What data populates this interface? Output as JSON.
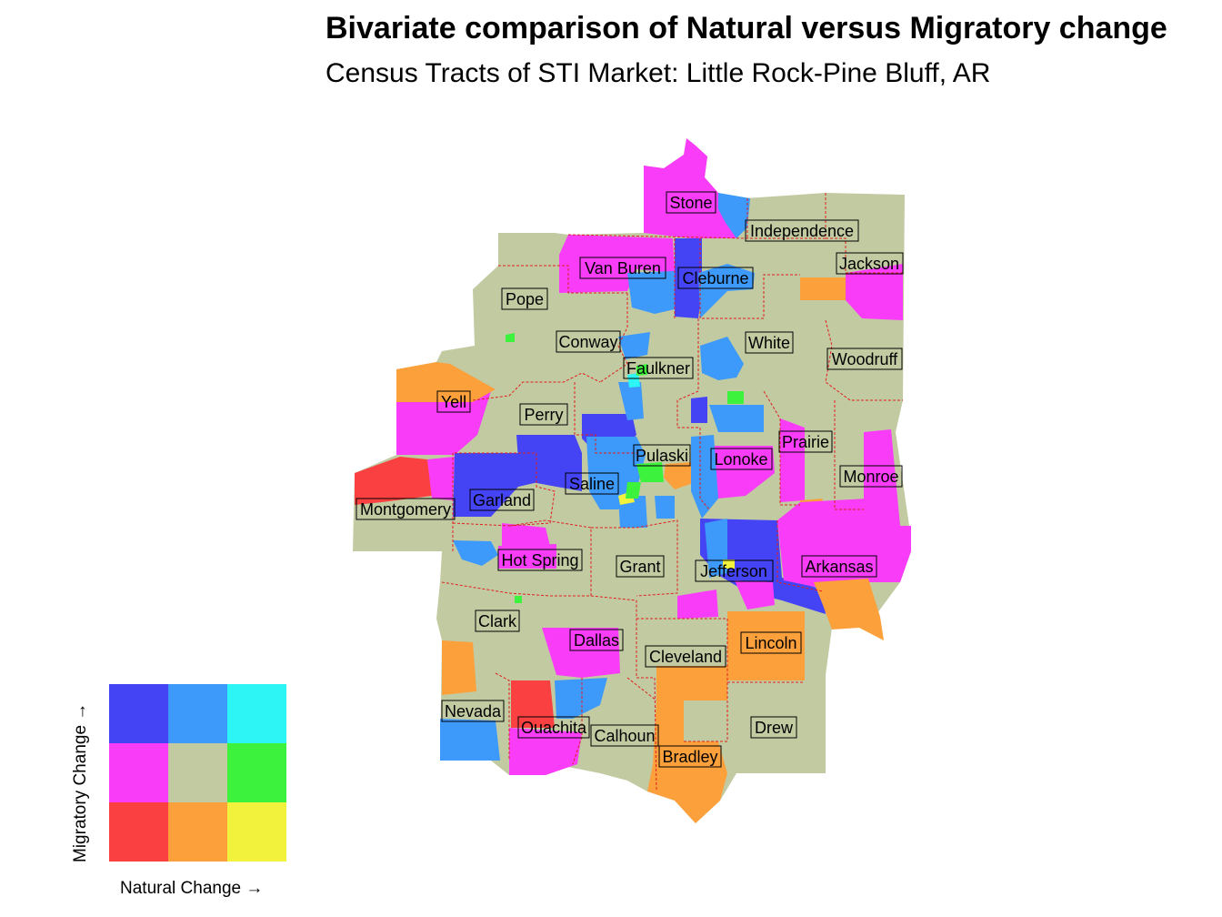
{
  "title": "Bivariate comparison of Natural versus Migratory change",
  "subtitle": "Census Tracts of STI Market: Little Rock-Pine Bluff, AR",
  "colors": {
    "high_mig_low_nat": "#4444f5",
    "high_mig_mid_nat": "#3d99fa",
    "high_mig_high_nat": "#2ef5f5",
    "mid_mig_low_nat": "#f83cf8",
    "mid_mig_mid_nat": "#c2caa2",
    "mid_mig_high_nat": "#3df23d",
    "low_mig_low_nat": "#fa4040",
    "low_mig_mid_nat": "#fca03c",
    "low_mig_high_nat": "#f2f23c",
    "county_border": "#e02020"
  },
  "counties": [
    {
      "name": "Stone",
      "fill": "#f83cf8"
    },
    {
      "name": "Independence",
      "fill": "#c2caa2"
    },
    {
      "name": "Van Buren",
      "fill": "#f83cf8"
    },
    {
      "name": "Cleburne",
      "fill": "#4444f5"
    },
    {
      "name": "Jackson",
      "fill": "#c2caa2"
    },
    {
      "name": "Pope",
      "fill": "#c2caa2"
    },
    {
      "name": "Conway",
      "fill": "#c2caa2"
    },
    {
      "name": "White",
      "fill": "#c2caa2"
    },
    {
      "name": "Woodruff",
      "fill": "#c2caa2"
    },
    {
      "name": "Faulkner",
      "fill": "#c2caa2"
    },
    {
      "name": "Yell",
      "fill": "#f83cf8"
    },
    {
      "name": "Perry",
      "fill": "#c2caa2"
    },
    {
      "name": "Prairie",
      "fill": "#c2caa2"
    },
    {
      "name": "Pulaski",
      "fill": "#c2caa2"
    },
    {
      "name": "Lonoke",
      "fill": "#c2caa2"
    },
    {
      "name": "Monroe",
      "fill": "#c2caa2"
    },
    {
      "name": "Saline",
      "fill": "#c2caa2"
    },
    {
      "name": "Garland",
      "fill": "#4444f5"
    },
    {
      "name": "Montgomery",
      "fill": "#c2caa2"
    },
    {
      "name": "Hot Spring",
      "fill": "#c2caa2"
    },
    {
      "name": "Grant",
      "fill": "#c2caa2"
    },
    {
      "name": "Jefferson",
      "fill": "#c2caa2"
    },
    {
      "name": "Arkansas",
      "fill": "#f83cf8"
    },
    {
      "name": "Clark",
      "fill": "#c2caa2"
    },
    {
      "name": "Dallas",
      "fill": "#c2caa2"
    },
    {
      "name": "Lincoln",
      "fill": "#fca03c"
    },
    {
      "name": "Cleveland",
      "fill": "#c2caa2"
    },
    {
      "name": "Nevada",
      "fill": "#c2caa2"
    },
    {
      "name": "Ouachita",
      "fill": "#c2caa2"
    },
    {
      "name": "Calhoun",
      "fill": "#c2caa2"
    },
    {
      "name": "Drew",
      "fill": "#c2caa2"
    },
    {
      "name": "Bradley",
      "fill": "#c2caa2"
    }
  ],
  "legend": {
    "x_label": "Natural Change →",
    "y_label": "Migratory Change →",
    "grid": [
      [
        "#4444f5",
        "#3d99fa",
        "#2ef5f5"
      ],
      [
        "#f83cf8",
        "#c2caa2",
        "#3df23d"
      ],
      [
        "#fa4040",
        "#fca03c",
        "#f2f23c"
      ]
    ]
  }
}
